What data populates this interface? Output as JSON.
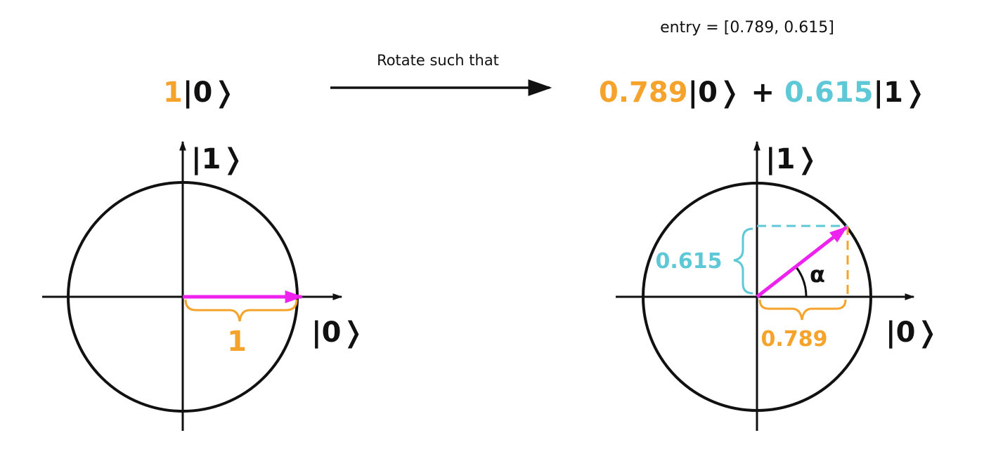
{
  "top": {
    "entry_label": "entry = [0.789, 0.615]",
    "rotate_label": "Rotate such that"
  },
  "left_state": {
    "coef": "1",
    "ket": "|0❭"
  },
  "right_state": {
    "coef0": "0.789",
    "ket0": "|0❭",
    "plus": "+",
    "coef1": "0.615",
    "ket1": "|1❭"
  },
  "left_circle": {
    "axis_y_label": "|1❭",
    "axis_x_label": "|0❭",
    "length_label": "1"
  },
  "right_circle": {
    "axis_y_label": "|1❭",
    "axis_x_label": "|0❭",
    "y_component_label": "0.615",
    "x_component_label": "0.789",
    "angle_label": "α",
    "vector": [
      0.789,
      0.615
    ]
  },
  "colors": {
    "orange": "#f5a32b",
    "cyan": "#5ec8d6",
    "magenta": "#ee22ee",
    "black": "#111111"
  }
}
